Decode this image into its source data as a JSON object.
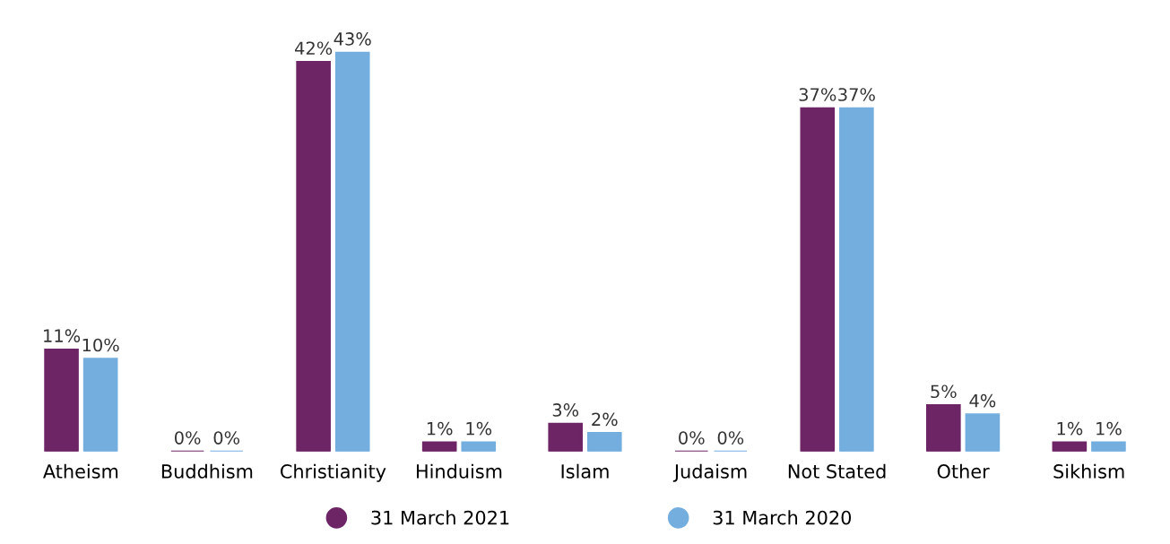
{
  "chart_data": {
    "type": "bar",
    "categories": [
      "Atheism",
      "Buddhism",
      "Christianity",
      "Hinduism",
      "Islam",
      "Judaism",
      "Not Stated",
      "Other",
      "Sikhism"
    ],
    "series": [
      {
        "name": "31 March 2021",
        "color": "#6d2566",
        "values": [
          11,
          0,
          42,
          1,
          3,
          0,
          37,
          5,
          1
        ],
        "value_labels": [
          "11%",
          "0%",
          "42%",
          "1%",
          "3%",
          "0%",
          "37%",
          "5%",
          "1%"
        ]
      },
      {
        "name": "31 March 2020",
        "color": "#74aedf",
        "values": [
          10,
          0,
          43,
          1,
          2,
          0,
          37,
          4,
          1
        ],
        "value_labels": [
          "10%",
          "0%",
          "43%",
          "1%",
          "2%",
          "0%",
          "37%",
          "4%",
          "1%"
        ]
      }
    ],
    "legend": "bottom",
    "marker": "circle",
    "grid": false
  }
}
